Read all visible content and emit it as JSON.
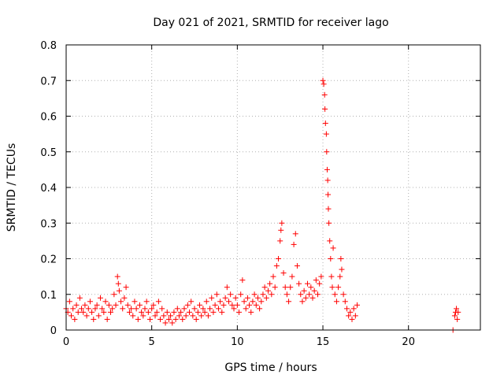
{
  "chart_data": {
    "type": "scatter",
    "title": "Day 021 of 2021, SRMTID for receiver lago",
    "xlabel": "GPS time / hours",
    "ylabel": "SRMTID / TECUs",
    "xlim": [
      0,
      24.2
    ],
    "ylim": [
      0,
      0.8
    ],
    "x_ticks": [
      0,
      5,
      10,
      15,
      20
    ],
    "x_tick_labels": [
      "0",
      "5",
      "10",
      "15",
      "20"
    ],
    "y_ticks": [
      0,
      0.1,
      0.2,
      0.3,
      0.4,
      0.5,
      0.6,
      0.7,
      0.8
    ],
    "y_tick_labels": [
      "0",
      "0.1",
      "0.2",
      "0.3",
      "0.4",
      "0.5",
      "0.6",
      "0.7",
      "0.8"
    ],
    "grid": true,
    "marker": "+",
    "marker_color": "#ff0000",
    "series": [
      {
        "name": "SRMTID",
        "points": [
          [
            0.0,
            0.06
          ],
          [
            0.1,
            0.05
          ],
          [
            0.2,
            0.08
          ],
          [
            0.3,
            0.04
          ],
          [
            0.4,
            0.06
          ],
          [
            0.5,
            0.03
          ],
          [
            0.6,
            0.07
          ],
          [
            0.7,
            0.05
          ],
          [
            0.8,
            0.09
          ],
          [
            0.9,
            0.06
          ],
          [
            1.0,
            0.05
          ],
          [
            1.1,
            0.07
          ],
          [
            1.2,
            0.04
          ],
          [
            1.3,
            0.06
          ],
          [
            1.4,
            0.08
          ],
          [
            1.5,
            0.05
          ],
          [
            1.6,
            0.03
          ],
          [
            1.7,
            0.06
          ],
          [
            1.8,
            0.07
          ],
          [
            1.9,
            0.04
          ],
          [
            2.0,
            0.09
          ],
          [
            2.1,
            0.06
          ],
          [
            2.2,
            0.05
          ],
          [
            2.3,
            0.08
          ],
          [
            2.4,
            0.03
          ],
          [
            2.5,
            0.07
          ],
          [
            2.6,
            0.05
          ],
          [
            2.7,
            0.06
          ],
          [
            2.8,
            0.1
          ],
          [
            2.9,
            0.07
          ],
          [
            3.0,
            0.15
          ],
          [
            3.05,
            0.13
          ],
          [
            3.1,
            0.11
          ],
          [
            3.2,
            0.08
          ],
          [
            3.3,
            0.06
          ],
          [
            3.4,
            0.09
          ],
          [
            3.5,
            0.12
          ],
          [
            3.6,
            0.07
          ],
          [
            3.7,
            0.05
          ],
          [
            3.8,
            0.06
          ],
          [
            3.9,
            0.04
          ],
          [
            4.0,
            0.08
          ],
          [
            4.1,
            0.06
          ],
          [
            4.2,
            0.03
          ],
          [
            4.3,
            0.07
          ],
          [
            4.4,
            0.05
          ],
          [
            4.5,
            0.04
          ],
          [
            4.6,
            0.06
          ],
          [
            4.7,
            0.08
          ],
          [
            4.8,
            0.05
          ],
          [
            4.9,
            0.03
          ],
          [
            5.0,
            0.06
          ],
          [
            5.1,
            0.07
          ],
          [
            5.2,
            0.04
          ],
          [
            5.3,
            0.05
          ],
          [
            5.4,
            0.08
          ],
          [
            5.5,
            0.03
          ],
          [
            5.6,
            0.06
          ],
          [
            5.7,
            0.04
          ],
          [
            5.8,
            0.02
          ],
          [
            5.9,
            0.05
          ],
          [
            6.0,
            0.03
          ],
          [
            6.1,
            0.04
          ],
          [
            6.2,
            0.02
          ],
          [
            6.3,
            0.05
          ],
          [
            6.4,
            0.03
          ],
          [
            6.5,
            0.06
          ],
          [
            6.6,
            0.04
          ],
          [
            6.7,
            0.05
          ],
          [
            6.8,
            0.03
          ],
          [
            6.9,
            0.06
          ],
          [
            7.0,
            0.04
          ],
          [
            7.1,
            0.07
          ],
          [
            7.2,
            0.05
          ],
          [
            7.3,
            0.08
          ],
          [
            7.4,
            0.04
          ],
          [
            7.5,
            0.06
          ],
          [
            7.6,
            0.03
          ],
          [
            7.7,
            0.05
          ],
          [
            7.8,
            0.07
          ],
          [
            7.9,
            0.04
          ],
          [
            8.0,
            0.06
          ],
          [
            8.1,
            0.05
          ],
          [
            8.2,
            0.08
          ],
          [
            8.3,
            0.04
          ],
          [
            8.4,
            0.06
          ],
          [
            8.5,
            0.09
          ],
          [
            8.6,
            0.05
          ],
          [
            8.7,
            0.07
          ],
          [
            8.8,
            0.1
          ],
          [
            8.9,
            0.06
          ],
          [
            9.0,
            0.08
          ],
          [
            9.1,
            0.05
          ],
          [
            9.2,
            0.07
          ],
          [
            9.3,
            0.09
          ],
          [
            9.4,
            0.12
          ],
          [
            9.5,
            0.08
          ],
          [
            9.6,
            0.1
          ],
          [
            9.7,
            0.07
          ],
          [
            9.8,
            0.06
          ],
          [
            9.9,
            0.09
          ],
          [
            10.0,
            0.07
          ],
          [
            10.1,
            0.05
          ],
          [
            10.2,
            0.1
          ],
          [
            10.3,
            0.14
          ],
          [
            10.4,
            0.08
          ],
          [
            10.5,
            0.06
          ],
          [
            10.6,
            0.09
          ],
          [
            10.7,
            0.07
          ],
          [
            10.8,
            0.05
          ],
          [
            10.9,
            0.08
          ],
          [
            11.0,
            0.1
          ],
          [
            11.1,
            0.07
          ],
          [
            11.2,
            0.09
          ],
          [
            11.3,
            0.06
          ],
          [
            11.4,
            0.08
          ],
          [
            11.5,
            0.1
          ],
          [
            11.6,
            0.12
          ],
          [
            11.7,
            0.09
          ],
          [
            11.8,
            0.11
          ],
          [
            11.9,
            0.13
          ],
          [
            12.0,
            0.1
          ],
          [
            12.1,
            0.15
          ],
          [
            12.2,
            0.12
          ],
          [
            12.3,
            0.18
          ],
          [
            12.4,
            0.2
          ],
          [
            12.5,
            0.25
          ],
          [
            12.55,
            0.28
          ],
          [
            12.6,
            0.3
          ],
          [
            12.7,
            0.16
          ],
          [
            12.8,
            0.12
          ],
          [
            12.9,
            0.1
          ],
          [
            13.0,
            0.08
          ],
          [
            13.1,
            0.12
          ],
          [
            13.2,
            0.15
          ],
          [
            13.3,
            0.24
          ],
          [
            13.4,
            0.27
          ],
          [
            13.5,
            0.18
          ],
          [
            13.6,
            0.13
          ],
          [
            13.7,
            0.1
          ],
          [
            13.8,
            0.08
          ],
          [
            13.9,
            0.11
          ],
          [
            14.0,
            0.09
          ],
          [
            14.1,
            0.13
          ],
          [
            14.2,
            0.1
          ],
          [
            14.3,
            0.12
          ],
          [
            14.4,
            0.09
          ],
          [
            14.5,
            0.11
          ],
          [
            14.6,
            0.14
          ],
          [
            14.7,
            0.1
          ],
          [
            14.8,
            0.13
          ],
          [
            14.9,
            0.15
          ],
          [
            15.0,
            0.7
          ],
          [
            15.05,
            0.69
          ],
          [
            15.1,
            0.66
          ],
          [
            15.12,
            0.62
          ],
          [
            15.15,
            0.58
          ],
          [
            15.2,
            0.55
          ],
          [
            15.22,
            0.5
          ],
          [
            15.25,
            0.45
          ],
          [
            15.28,
            0.42
          ],
          [
            15.3,
            0.38
          ],
          [
            15.32,
            0.34
          ],
          [
            15.35,
            0.3
          ],
          [
            15.4,
            0.25
          ],
          [
            15.45,
            0.2
          ],
          [
            15.5,
            0.15
          ],
          [
            15.55,
            0.12
          ],
          [
            15.6,
            0.23
          ],
          [
            15.7,
            0.1
          ],
          [
            15.8,
            0.08
          ],
          [
            15.9,
            0.12
          ],
          [
            16.0,
            0.15
          ],
          [
            16.05,
            0.2
          ],
          [
            16.1,
            0.17
          ],
          [
            16.2,
            0.1
          ],
          [
            16.3,
            0.08
          ],
          [
            16.4,
            0.06
          ],
          [
            16.5,
            0.04
          ],
          [
            16.6,
            0.05
          ],
          [
            16.7,
            0.03
          ],
          [
            16.8,
            0.06
          ],
          [
            16.9,
            0.04
          ],
          [
            17.0,
            0.07
          ],
          [
            22.6,
            0.0
          ],
          [
            22.7,
            0.04
          ],
          [
            22.75,
            0.05
          ],
          [
            22.8,
            0.06
          ],
          [
            22.85,
            0.03
          ],
          [
            22.9,
            0.05
          ]
        ]
      }
    ]
  }
}
